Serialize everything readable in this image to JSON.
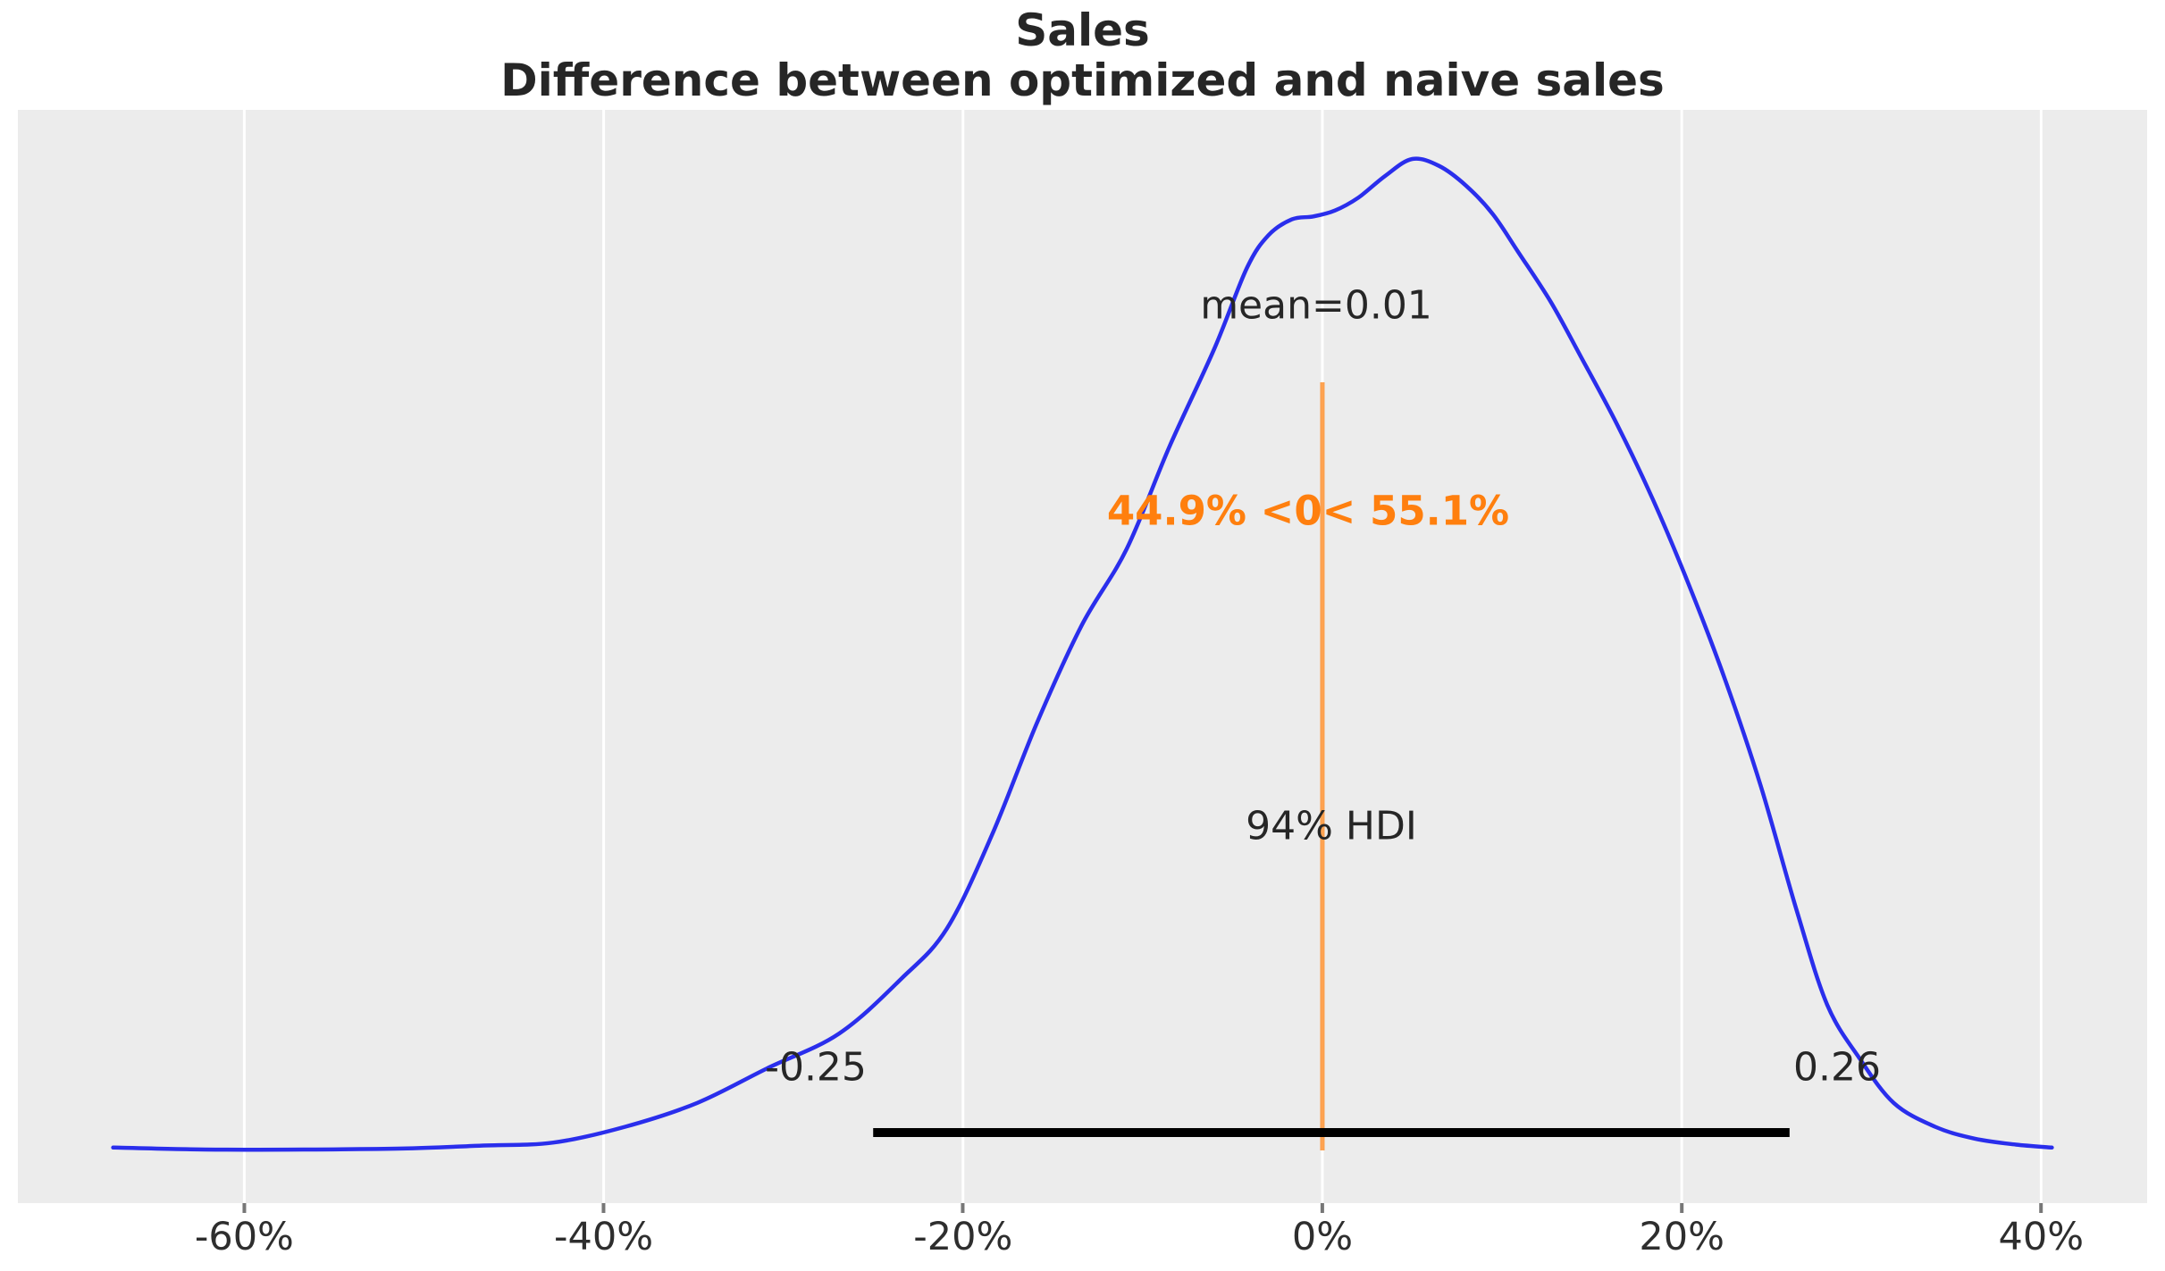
{
  "title": {
    "line1": "Sales",
    "line2": "Difference between optimized and naive sales"
  },
  "annotations": {
    "mean_label": "mean=0.01",
    "ref_val_label": "44.9% <0< 55.1%",
    "hdi_label": "94% HDI",
    "hdi_lower_label": "-0.25",
    "hdi_upper_label": "0.26"
  },
  "colors": {
    "plot_background": "#ececec",
    "gridline": "#ffffff",
    "curve": "#2a2eec",
    "reference_line": "#ff7f0e",
    "reference_text": "#ff7f0e",
    "hdi_bar": "#000000",
    "text": "#262626"
  },
  "chart_data": {
    "type": "line",
    "subtype": "kde-posterior",
    "title": "Sales — Difference between optimized and naive sales",
    "xlabel": "",
    "ylabel": "",
    "grid": true,
    "xlim_pct": [
      -72.6,
      45.9
    ],
    "x_ticks": [
      {
        "label": "-60%",
        "pct": -60
      },
      {
        "label": "-40%",
        "pct": -40
      },
      {
        "label": "-20%",
        "pct": -20
      },
      {
        "label": "0%",
        "pct": 0
      },
      {
        "label": "20%",
        "pct": 20
      },
      {
        "label": "40%",
        "pct": 40
      }
    ],
    "mean": 0.01,
    "ref_val": {
      "value": 0,
      "pct_below": 44.9,
      "pct_above": 55.1
    },
    "hdi": {
      "prob": 0.94,
      "lower": -0.25,
      "upper": 0.26,
      "lower_pct": -25,
      "upper_pct": 26
    },
    "curve_points_pct_density": [
      [
        -67.3,
        0.002
      ],
      [
        -62.2,
        0.0
      ],
      [
        -56.7,
        0.0
      ],
      [
        -51.2,
        0.001
      ],
      [
        -46.8,
        0.004
      ],
      [
        -42.8,
        0.007
      ],
      [
        -38.8,
        0.023
      ],
      [
        -34.8,
        0.047
      ],
      [
        -30.9,
        0.082
      ],
      [
        -26.9,
        0.117
      ],
      [
        -23.4,
        0.173
      ],
      [
        -20.9,
        0.223
      ],
      [
        -18.4,
        0.317
      ],
      [
        -15.9,
        0.43
      ],
      [
        -13.4,
        0.529
      ],
      [
        -10.9,
        0.606
      ],
      [
        -8.5,
        0.71
      ],
      [
        -6.0,
        0.809
      ],
      [
        -4.2,
        0.89
      ],
      [
        -3.0,
        0.923
      ],
      [
        -1.7,
        0.939
      ],
      [
        -0.5,
        0.942
      ],
      [
        0.7,
        0.948
      ],
      [
        2.0,
        0.961
      ],
      [
        3.5,
        0.983
      ],
      [
        5.0,
        1.0
      ],
      [
        6.5,
        0.993
      ],
      [
        8.0,
        0.973
      ],
      [
        9.5,
        0.944
      ],
      [
        10.9,
        0.906
      ],
      [
        12.7,
        0.856
      ],
      [
        14.4,
        0.8
      ],
      [
        16.4,
        0.732
      ],
      [
        18.4,
        0.656
      ],
      [
        20.4,
        0.57
      ],
      [
        22.4,
        0.475
      ],
      [
        24.4,
        0.367
      ],
      [
        26.4,
        0.241
      ],
      [
        28.1,
        0.146
      ],
      [
        29.9,
        0.092
      ],
      [
        31.8,
        0.047
      ],
      [
        34.1,
        0.023
      ],
      [
        36.3,
        0.011
      ],
      [
        38.6,
        0.005
      ],
      [
        40.6,
        0.002
      ]
    ]
  }
}
